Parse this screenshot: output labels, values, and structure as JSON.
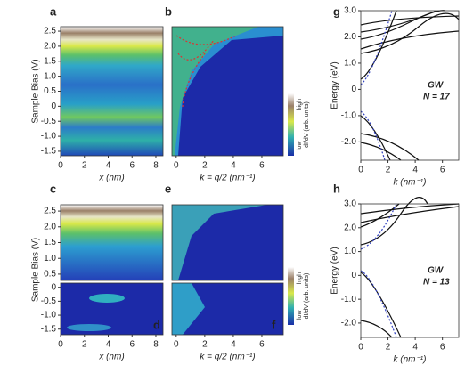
{
  "panels": [
    {
      "letter": "a",
      "ylabel": "Sample Bias (V)",
      "xlabel": "x (nm)",
      "xlim": [
        0,
        8.6
      ],
      "xticks": [
        0,
        2,
        4,
        6,
        8
      ],
      "ylim": [
        -1.65,
        2.65
      ],
      "yticks": [
        2.5,
        {
          "value": 2,
          "label": "2.0"
        },
        1.5,
        {
          "value": 1,
          "label": "1.0"
        },
        0.5,
        0,
        -0.5,
        {
          "value": -1,
          "label": "-1.0"
        },
        -1.5
      ]
    },
    {
      "letter": "b",
      "xlabel": "k = q/2 (nm⁻¹)",
      "xlim": [
        -0.3,
        7.5
      ],
      "xticks": [
        0,
        2,
        4,
        6
      ],
      "ylim": [
        -1.65,
        2.65
      ],
      "colorbar": {
        "high": "high",
        "low": "low",
        "label": "dI/dV (arb. units)"
      }
    },
    {
      "letter": "g",
      "ylabel": "Energy (eV)",
      "xlabel": "k (nm⁻¹)",
      "xlim": [
        0,
        7.2
      ],
      "xticks": [
        0,
        2,
        4,
        6
      ],
      "ylim": [
        -2.7,
        3.0
      ],
      "yticks": [
        {
          "value": 3,
          "label": "3.0"
        },
        {
          "value": 2,
          "label": "2.0"
        },
        {
          "value": 1,
          "label": "1.0"
        },
        0,
        {
          "value": -1,
          "label": "-1.0"
        },
        {
          "value": -2,
          "label": "-2.0"
        }
      ],
      "method": "GW",
      "note": "N = 17"
    },
    {
      "letter": "c",
      "ylabel": "Sample Bias (V)",
      "xlim": [
        0,
        8.6
      ],
      "ylim": [
        0.3,
        2.7
      ],
      "yticks": [
        2.5,
        {
          "value": 2,
          "label": "2.0"
        },
        1.5,
        {
          "value": 1,
          "label": "1.0"
        },
        0.5
      ]
    },
    {
      "letter": "d",
      "xlabel": "x (nm)",
      "xlim": [
        0,
        8.6
      ],
      "xticks": [
        0,
        2,
        4,
        6,
        8
      ],
      "ylim": [
        -1.7,
        0.15
      ],
      "yticks": [
        0,
        -0.5,
        {
          "value": -1,
          "label": "-1.0"
        },
        -1.5
      ]
    },
    {
      "letter": "e",
      "xlim": [
        -0.3,
        7.5
      ],
      "ylim": [
        0.3,
        2.7
      ]
    },
    {
      "letter": "f",
      "xlabel": "k = q/2 (nm⁻¹)",
      "xlim": [
        -0.3,
        7.5
      ],
      "xticks": [
        0,
        2,
        4,
        6
      ],
      "ylim": [
        -1.7,
        0.15
      ],
      "colorbar": {
        "high": "high",
        "low": "low",
        "label": "dI/dV (arb. units)"
      }
    },
    {
      "letter": "h",
      "ylabel": "Energy (eV)",
      "xlabel": "k (nm⁻¹)",
      "xlim": [
        0,
        7.2
      ],
      "xticks": [
        0,
        2,
        4,
        6
      ],
      "ylim": [
        -2.6,
        3.0
      ],
      "yticks": [
        {
          "value": 3,
          "label": "3.0"
        },
        {
          "value": 2,
          "label": "2.0"
        },
        {
          "value": 1,
          "label": "1.0"
        },
        0,
        {
          "value": -1,
          "label": "-1.0"
        },
        {
          "value": -2,
          "label": "-2.0"
        }
      ],
      "method": "GW",
      "note": "N = 13"
    }
  ]
}
